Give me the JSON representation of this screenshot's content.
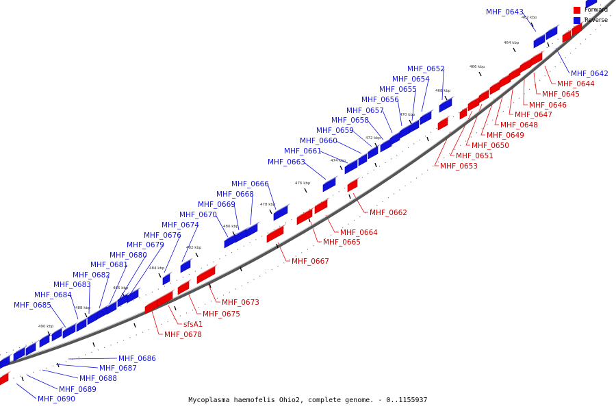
{
  "caption": "Mycoplasma haemofelis Ohio2, complete genome. - 0..1155937",
  "legend": [
    {
      "label": "Forward",
      "color": "#ee0000"
    },
    {
      "label": "Reverse",
      "color": "#1111dd"
    }
  ],
  "colors": {
    "forward": "#ee0000",
    "reverse": "#1111dd",
    "backbone": "#777777"
  },
  "ticks_kbp": [
    "462 kbp",
    "464 kbp",
    "466 kbp",
    "468 kbp",
    "470 kbp",
    "472 kbp",
    "474 kbp",
    "476 kbp",
    "478 kbp",
    "480 kbp",
    "482 kbp",
    "484 kbp",
    "486 kbp",
    "488 kbp",
    "490 kbp"
  ],
  "reverse_genes": [
    "MHF_0643",
    "MHF_0652",
    "MHF_0654",
    "MHF_0655",
    "MHF_0656",
    "MHF_0657",
    "MHF_0658",
    "MHF_0659",
    "MHF_0660",
    "MHF_0661",
    "MHF_0663",
    "MHF_0666",
    "MHF_0668",
    "MHF_0669",
    "MHF_0670",
    "MHF_0674",
    "MHF_0676",
    "MHF_0679",
    "MHF_0680",
    "MHF_0681",
    "MHF_0682",
    "MHF_0683",
    "MHF_0684",
    "MHF_0685",
    "MHF_0686",
    "MHF_0687",
    "MHF_0688",
    "MHF_0689",
    "MHF_0690",
    "MHF_0642"
  ],
  "forward_genes": [
    "MHF_0644",
    "MHF_0645",
    "MHF_0646",
    "MHF_0647",
    "MHF_0648",
    "MHF_0649",
    "MHF_0650",
    "MHF_0651",
    "MHF_0653",
    "MHF_0662",
    "MHF_0664",
    "MHF_0665",
    "MHF_0667",
    "MHF_0673",
    "MHF_0675",
    "sfsA1",
    "MHF_0678"
  ]
}
